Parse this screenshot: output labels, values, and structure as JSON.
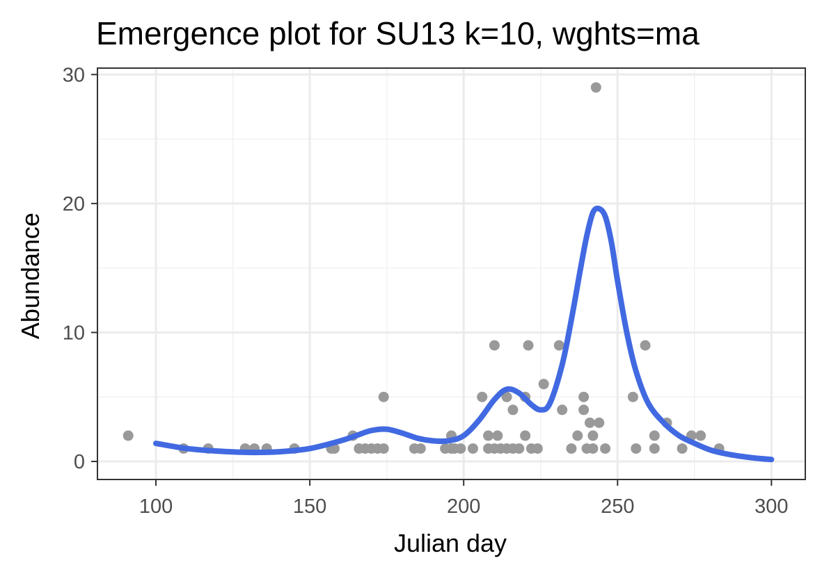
{
  "chart_data": {
    "type": "scatter",
    "title": "Emergence plot for SU13 k=10, wghts=ma",
    "xlabel": "Julian day",
    "ylabel": "Abundance",
    "xlim": [
      81,
      311
    ],
    "ylim": [
      -1.4,
      30.5
    ],
    "x_ticks": [
      100,
      150,
      200,
      250,
      300
    ],
    "y_ticks": [
      0,
      10,
      20,
      30
    ],
    "x_minor_ticks": [
      125,
      175,
      225,
      275
    ],
    "y_minor_ticks": [
      5,
      15,
      25
    ],
    "grid": true,
    "theme": "bw",
    "legend": "none",
    "series": [
      {
        "kind": "points",
        "color": "#999999",
        "x": [
          91,
          109,
          117,
          129,
          132,
          136,
          145,
          157,
          158,
          164,
          166,
          168,
          170,
          172,
          174,
          174,
          184,
          186,
          194,
          196,
          196,
          197,
          199,
          203,
          206,
          208,
          208,
          210,
          210,
          211,
          212,
          214,
          214,
          216,
          216,
          218,
          220,
          220,
          221,
          222,
          224,
          226,
          231,
          232,
          235,
          237,
          239,
          239,
          240,
          241,
          242,
          242,
          243,
          244,
          246,
          255,
          256,
          259,
          262,
          262,
          266,
          271,
          274,
          277,
          283
        ],
        "y": [
          2,
          1,
          1,
          1,
          1,
          1,
          1,
          1,
          1,
          2,
          1,
          1,
          1,
          1,
          5,
          1,
          1,
          1,
          1,
          2,
          1,
          1,
          1,
          1,
          5,
          2,
          1,
          9,
          1,
          2,
          1,
          1,
          5,
          4,
          1,
          1,
          2,
          5,
          9,
          1,
          1,
          6,
          9,
          4,
          1,
          2,
          5,
          4,
          1,
          3,
          2,
          1,
          29,
          3,
          1,
          5,
          1,
          9,
          2,
          1,
          3,
          1,
          2,
          2,
          1
        ]
      },
      {
        "kind": "smooth",
        "color": "#4169E1",
        "x": [
          100,
          110,
          120,
          130,
          140,
          150,
          160,
          165,
          170,
          175,
          180,
          185,
          190,
          195,
          200,
          205,
          210,
          214,
          218,
          222,
          225,
          228,
          232,
          235,
          238,
          240,
          242,
          244,
          246,
          248,
          250,
          253,
          256,
          260,
          265,
          270,
          275,
          280,
          285,
          290,
          295,
          300
        ],
        "y": [
          1.4,
          1.0,
          0.8,
          0.7,
          0.75,
          1.0,
          1.6,
          2.0,
          2.4,
          2.5,
          2.2,
          1.8,
          1.6,
          1.6,
          2.0,
          3.2,
          4.8,
          5.6,
          5.3,
          4.4,
          4.0,
          4.5,
          7.5,
          11.0,
          15.0,
          17.5,
          19.3,
          19.6,
          19.0,
          17.0,
          14.0,
          10.0,
          7.0,
          4.5,
          3.0,
          2.0,
          1.4,
          0.9,
          0.6,
          0.4,
          0.25,
          0.15
        ]
      }
    ]
  }
}
